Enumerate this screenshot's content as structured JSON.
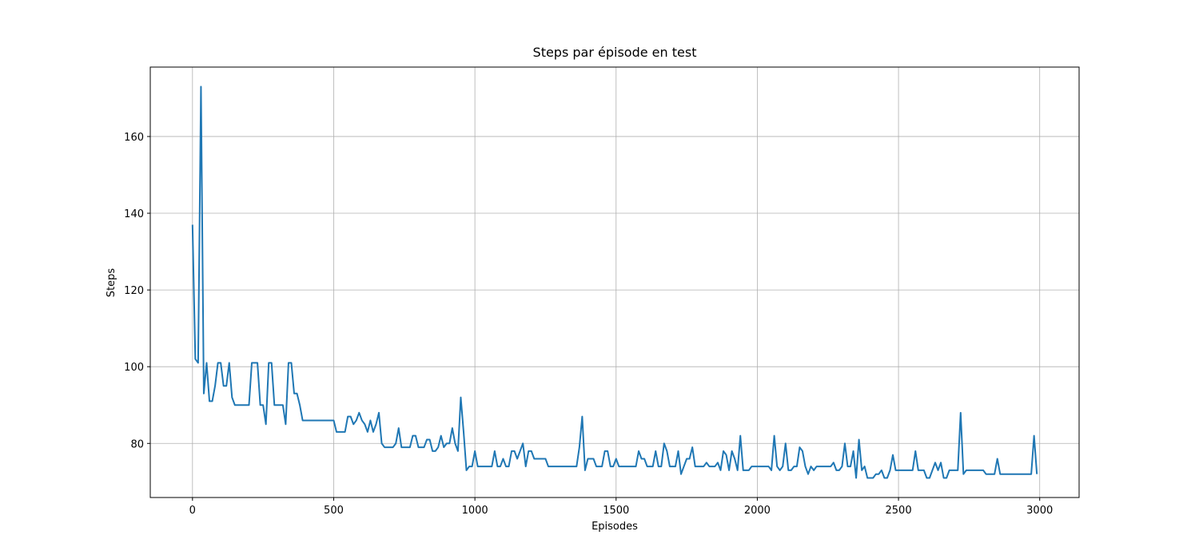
{
  "chart_data": {
    "type": "line",
    "title": "Steps par épisode en test",
    "xlabel": "Episodes",
    "ylabel": "Steps",
    "x": [
      0,
      10,
      20,
      30,
      40,
      50,
      60,
      70,
      80,
      90,
      100,
      110,
      120,
      130,
      140,
      150,
      200,
      210,
      230,
      240,
      250,
      260,
      270,
      280,
      290,
      320,
      330,
      340,
      350,
      360,
      370,
      380,
      390,
      500,
      510,
      540,
      550,
      560,
      570,
      580,
      590,
      600,
      610,
      620,
      630,
      640,
      650,
      660,
      670,
      680,
      710,
      720,
      730,
      740,
      770,
      780,
      790,
      800,
      820,
      830,
      840,
      850,
      860,
      870,
      880,
      890,
      900,
      910,
      920,
      930,
      940,
      950,
      960,
      970,
      980,
      990,
      1000,
      1010,
      1060,
      1070,
      1080,
      1090,
      1100,
      1110,
      1120,
      1130,
      1140,
      1150,
      1160,
      1170,
      1180,
      1190,
      1200,
      1210,
      1250,
      1260,
      1360,
      1370,
      1380,
      1390,
      1400,
      1420,
      1430,
      1450,
      1460,
      1470,
      1480,
      1490,
      1500,
      1510,
      1570,
      1580,
      1590,
      1600,
      1610,
      1630,
      1640,
      1650,
      1660,
      1670,
      1680,
      1690,
      1710,
      1720,
      1730,
      1740,
      1750,
      1760,
      1770,
      1780,
      1810,
      1820,
      1830,
      1850,
      1860,
      1870,
      1880,
      1890,
      1900,
      1910,
      1920,
      1930,
      1940,
      1950,
      1970,
      1980,
      2040,
      2050,
      2060,
      2070,
      2080,
      2090,
      2100,
      2110,
      2120,
      2130,
      2140,
      2150,
      2160,
      2170,
      2180,
      2190,
      2200,
      2210,
      2260,
      2270,
      2280,
      2290,
      2300,
      2310,
      2320,
      2330,
      2340,
      2350,
      2360,
      2370,
      2380,
      2390,
      2410,
      2420,
      2430,
      2440,
      2450,
      2460,
      2470,
      2480,
      2490,
      2550,
      2560,
      2570,
      2590,
      2600,
      2610,
      2620,
      2630,
      2640,
      2650,
      2660,
      2670,
      2680,
      2710,
      2720,
      2730,
      2740,
      2800,
      2810,
      2840,
      2850,
      2860,
      2970,
      2980,
      2990
    ],
    "values": [
      137,
      102,
      101,
      173,
      93,
      101,
      91,
      91,
      95,
      101,
      101,
      95,
      95,
      101,
      92,
      90,
      90,
      101,
      101,
      90,
      90,
      85,
      101,
      101,
      90,
      90,
      85,
      101,
      101,
      93,
      93,
      90,
      86,
      86,
      83,
      83,
      87,
      87,
      85,
      86,
      88,
      86,
      85,
      83,
      86,
      83,
      85,
      88,
      80,
      79,
      79,
      80,
      84,
      79,
      79,
      82,
      82,
      79,
      79,
      81,
      81,
      78,
      78,
      79,
      82,
      79,
      80,
      80,
      84,
      80,
      78,
      92,
      83,
      73,
      74,
      74,
      78,
      74,
      74,
      78,
      74,
      74,
      76,
      74,
      74,
      78,
      78,
      76,
      78,
      80,
      74,
      78,
      78,
      76,
      76,
      74,
      74,
      79,
      87,
      73,
      76,
      76,
      74,
      74,
      78,
      78,
      74,
      74,
      76,
      74,
      74,
      78,
      76,
      76,
      74,
      74,
      78,
      74,
      74,
      80,
      78,
      74,
      74,
      78,
      72,
      74,
      76,
      76,
      79,
      74,
      74,
      75,
      74,
      74,
      75,
      73,
      78,
      77,
      73,
      78,
      76,
      73,
      82,
      73,
      73,
      74,
      74,
      73,
      82,
      74,
      73,
      74,
      80,
      73,
      73,
      74,
      74,
      79,
      78,
      74,
      72,
      74,
      73,
      74,
      74,
      75,
      73,
      73,
      74,
      80,
      74,
      74,
      78,
      71,
      81,
      73,
      74,
      71,
      71,
      72,
      72,
      73,
      71,
      71,
      73,
      77,
      73,
      73,
      78,
      73,
      73,
      71,
      71,
      73,
      75,
      73,
      75,
      71,
      71,
      73,
      73,
      88,
      72,
      73,
      73,
      72,
      72,
      76,
      72,
      72,
      82,
      72
    ],
    "color": "#1f77b4",
    "xlim": [
      -149.5,
      3139.5
    ],
    "ylim": [
      65.9,
      178.1
    ],
    "xticks": [
      0,
      500,
      1000,
      1500,
      2000,
      2500,
      3000
    ],
    "yticks": [
      80,
      100,
      120,
      140,
      160
    ],
    "grid": true
  }
}
